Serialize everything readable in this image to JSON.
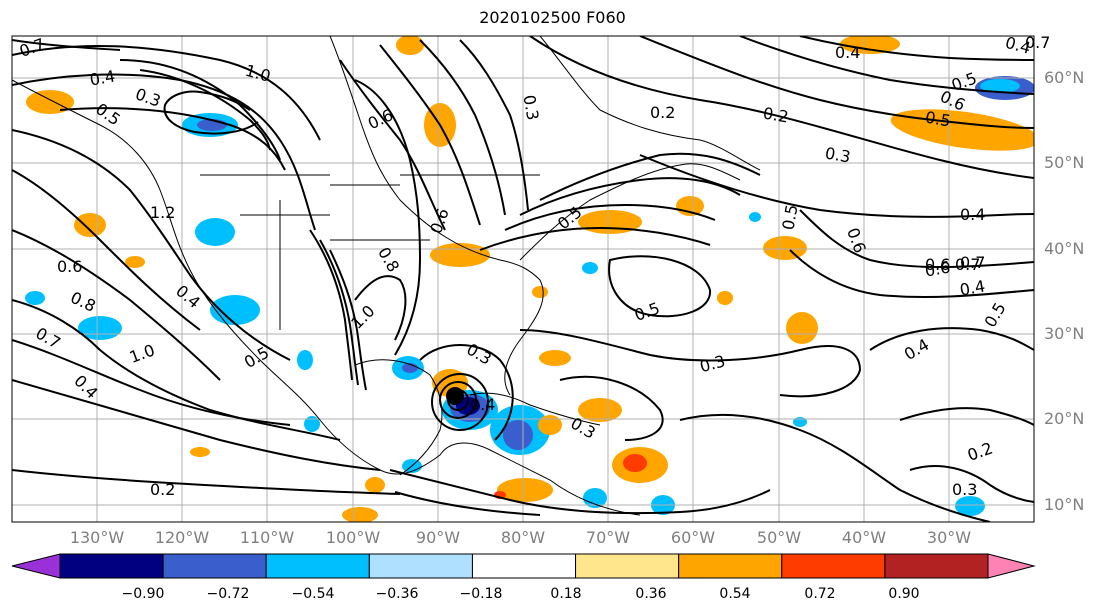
{
  "title": "2020102500 F060",
  "lat_labels": [
    "60°N",
    "50°N",
    "40°N",
    "30°N",
    "20°N",
    "10°N"
  ],
  "lon_labels": [
    "130°W",
    "120°W",
    "110°W",
    "100°W",
    "90°W",
    "80°W",
    "70°W",
    "60°W",
    "50°W",
    "40°W",
    "30°W"
  ],
  "colorbar": {
    "ticks": [
      "−0.90",
      "−0.72",
      "−0.54",
      "−0.36",
      "−0.18",
      "0.18",
      "0.36",
      "0.54",
      "0.72",
      "0.90"
    ],
    "colors": [
      "#9a31d8",
      "#000080",
      "#3a5fcd",
      "#00bfff",
      "#b0e0ff",
      "#ffffff",
      "#ffe68c",
      "#ffa500",
      "#ff3c00",
      "#b22222",
      "#ff82b4"
    ]
  },
  "contour_labels": [
    "0.7",
    "0.4",
    "0.3",
    "1.0",
    "0.5",
    "0.6",
    "0.4",
    "0.7",
    "0.3",
    "0.5",
    "0.6",
    "0.2",
    "0.3",
    "0.4",
    "0.5",
    "0.6",
    "0.7",
    "0.4",
    "1.2",
    "0.6",
    "0.8",
    "0.7",
    "1.0",
    "0.4",
    "0.2",
    "0.5",
    "0.8",
    "1.0",
    "0.4",
    "0.6",
    "0.5",
    "0.3",
    "0.4",
    "0.6",
    "0.2",
    "0.3",
    "0.3",
    "0.5",
    "0.6",
    "0.5",
    "0.7",
    "0.4",
    "0.5",
    "0.4",
    "0.2",
    "0.3"
  ]
}
